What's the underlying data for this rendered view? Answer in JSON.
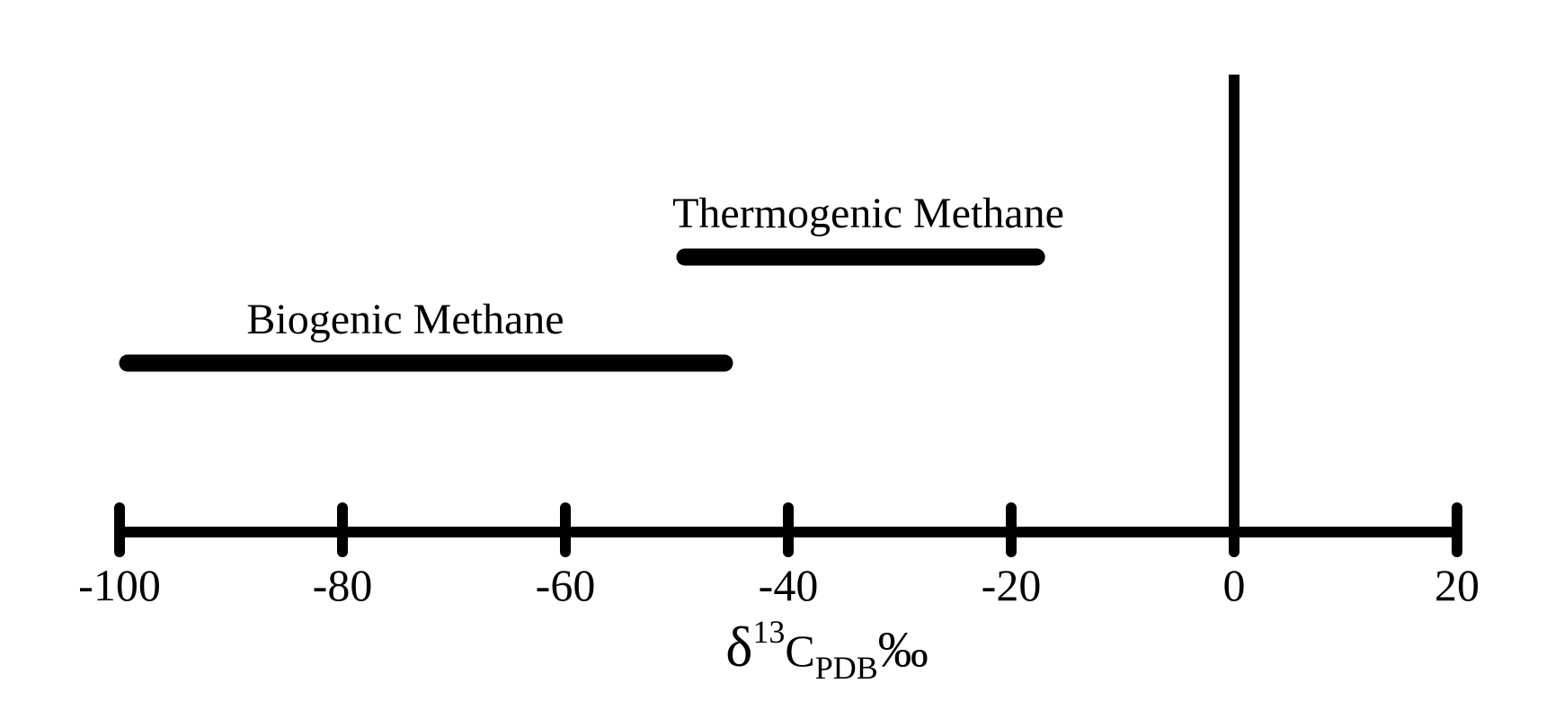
{
  "chart_data": {
    "type": "range",
    "xlabel": {
      "symbol": "δ",
      "superscript": "13",
      "element": "C",
      "subscript": "PDB",
      "unit": "‰"
    },
    "xlim": [
      -100,
      20
    ],
    "xticks": [
      -100,
      -80,
      -60,
      -40,
      -20,
      0,
      20
    ],
    "xtick_labels": [
      "-100",
      "-80",
      "-60",
      "-40",
      "-20",
      "0",
      "20"
    ],
    "reference_line": 0,
    "ranges": [
      {
        "name": "Biogenic Methane",
        "start": -100,
        "end": -45
      },
      {
        "name": "Thermogenic Methane",
        "start": -50,
        "end": -17
      }
    ],
    "grid": false,
    "color": "#000000"
  }
}
